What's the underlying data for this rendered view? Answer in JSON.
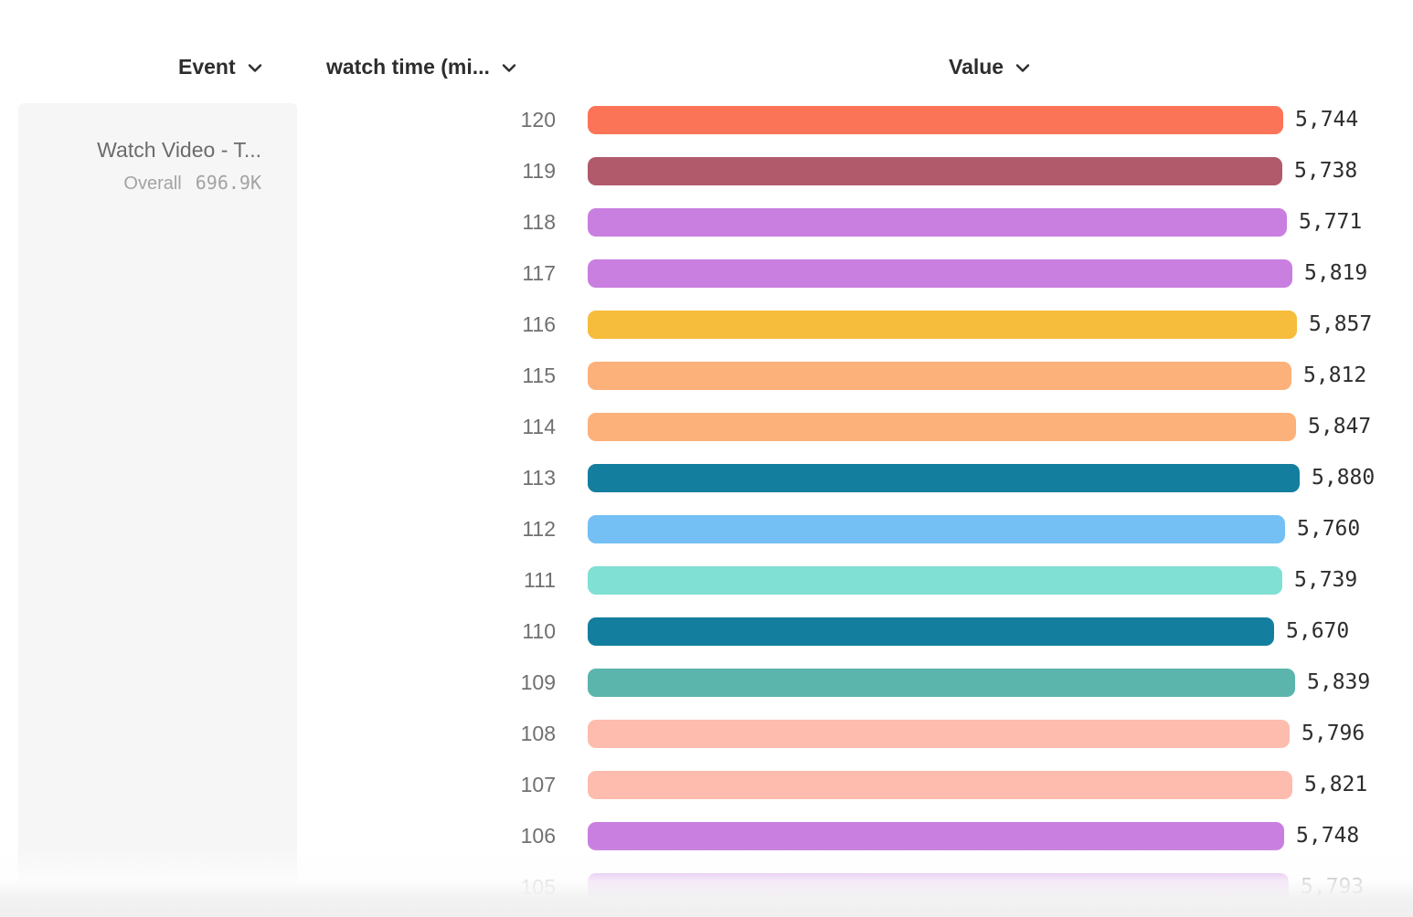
{
  "header": {
    "event_label": "Event",
    "series_label": "watch time (mi...",
    "value_label": "Value"
  },
  "event_card": {
    "name": "Watch Video - T...",
    "segment_label": "Overall",
    "segment_value": "696.9K"
  },
  "chart_data": {
    "type": "bar",
    "orientation": "horizontal",
    "title": "",
    "xlabel": "Value",
    "ylabel": "watch time (mi...",
    "categories": [
      "120",
      "119",
      "118",
      "117",
      "116",
      "115",
      "114",
      "113",
      "112",
      "111",
      "110",
      "109",
      "108",
      "107",
      "106",
      "105"
    ],
    "values": [
      5744,
      5738,
      5771,
      5819,
      5857,
      5812,
      5847,
      5880,
      5760,
      5739,
      5670,
      5839,
      5796,
      5821,
      5748,
      5793
    ],
    "value_labels": [
      "5,744",
      "5,738",
      "5,771",
      "5,819",
      "5,857",
      "5,812",
      "5,847",
      "5,880",
      "5,760",
      "5,739",
      "5,670",
      "5,839",
      "5,796",
      "5,821",
      "5,748",
      "5,793"
    ],
    "colors": [
      "#FC7458",
      "#B05A6C",
      "#C97FE0",
      "#C97FE0",
      "#F6BC3B",
      "#FDB17A",
      "#FDB17A",
      "#147E9E",
      "#74BFF4",
      "#80E0D3",
      "#147E9E",
      "#5BB5AC",
      "#FDBCAE",
      "#FDBCAE",
      "#C97FE0",
      "#C97FE0"
    ],
    "max_value": 5880,
    "grid": false,
    "legend": false
  },
  "ui_colors": {
    "header_text": "#2d2d2d",
    "label_text": "#707070",
    "value_text": "#2d2d2d",
    "card_background": "#f6f6f6",
    "card_name_text": "#6b6b6b",
    "card_segment_text": "#a3a3a3"
  }
}
